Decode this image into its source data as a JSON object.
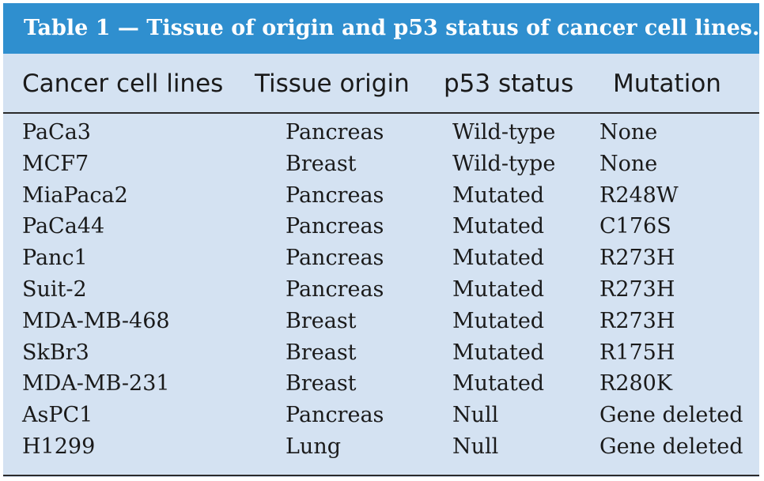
{
  "caption": "Table 1 — Tissue of origin and p53 status of cancer cell lines.",
  "headers": [
    "Cancer cell lines",
    "Tissue origin",
    "p53 status",
    "Mutation"
  ],
  "rows": [
    [
      "PaCa3",
      "Pancreas",
      "Wild-type",
      "None"
    ],
    [
      "MCF7",
      "Breast",
      "Wild-type",
      "None"
    ],
    [
      "MiaPaca2",
      "Pancreas",
      "Mutated",
      "R248W"
    ],
    [
      "PaCa44",
      "Pancreas",
      "Mutated",
      "C176S"
    ],
    [
      "Panc1",
      "Pancreas",
      "Mutated",
      "R273H"
    ],
    [
      "Suit-2",
      "Pancreas",
      "Mutated",
      "R273H"
    ],
    [
      "MDA-MB-468",
      "Breast",
      "Mutated",
      "R273H"
    ],
    [
      "SkBr3",
      "Breast",
      "Mutated",
      "R175H"
    ],
    [
      "MDA-MB-231",
      "Breast",
      "Mutated",
      "R280K"
    ],
    [
      "AsPC1",
      "Pancreas",
      "Null",
      "Gene deleted"
    ],
    [
      "H1299",
      "Lung",
      "Null",
      "Gene deleted"
    ]
  ],
  "colors": {
    "caption_bg": "#2f8fcf",
    "table_bg": "#d4e2f2",
    "text": "#1a1a1a"
  }
}
